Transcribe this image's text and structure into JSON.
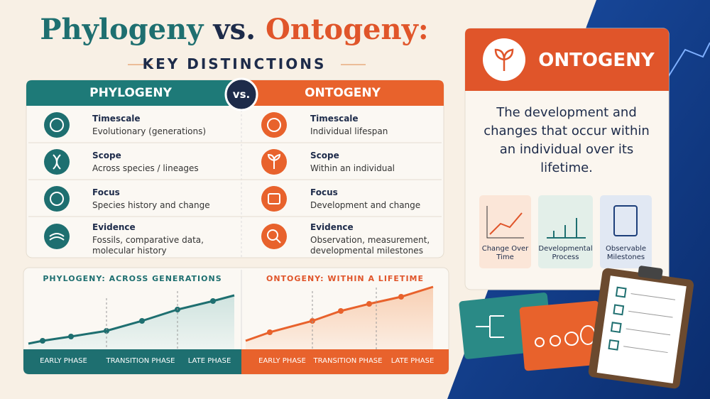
{
  "header": {
    "title": [
      "Phylogeny",
      "vs.",
      "Ontogeny:"
    ],
    "subtitle": "KEY DISTINCTIONS"
  },
  "comparison": {
    "headers": [
      "PHYLOGENY",
      "vs.",
      "ONTOGENY"
    ],
    "rows": [
      {
        "phylogeny": {
          "label": "Timescale",
          "text": "Evolutionary (generations)"
        },
        "ontogeny": {
          "label": "Timescale",
          "text": "Individual lifespan"
        }
      },
      {
        "phylogeny": {
          "label": "Scope",
          "text": "Across species / lineages"
        },
        "ontogeny": {
          "label": "Scope",
          "text": "Within an individual"
        }
      },
      {
        "phylogeny": {
          "label": "Focus",
          "text": "Species history and change"
        },
        "ontogeny": {
          "label": "Focus",
          "text": "Development and change"
        }
      },
      {
        "phylogeny": {
          "label": "Evidence",
          "text": "Fossils, comparative data, molecular history"
        },
        "ontogeny": {
          "label": "Evidence",
          "text": "Observation, measurement, developmental milestones"
        }
      }
    ]
  },
  "timelines": [
    {
      "title": "PHYLOGENY: ACROSS GENERATIONS",
      "phases": [
        "EARLY PHASE",
        "TRANSITION PHASE",
        "LATE PHASE"
      ]
    },
    {
      "title": "ONTOGENY: WITHIN A LIFETIME",
      "phases": [
        "EARLY PHASE",
        "TRANSITION PHASE",
        "LATE PHASE"
      ]
    }
  ],
  "card": {
    "title": "ONTOGENY",
    "definition": "The development and changes that occur within an individual over its lifetime.",
    "tiles": [
      "Change Over Time",
      "Developmental Process",
      "Observable Milestones"
    ]
  }
}
